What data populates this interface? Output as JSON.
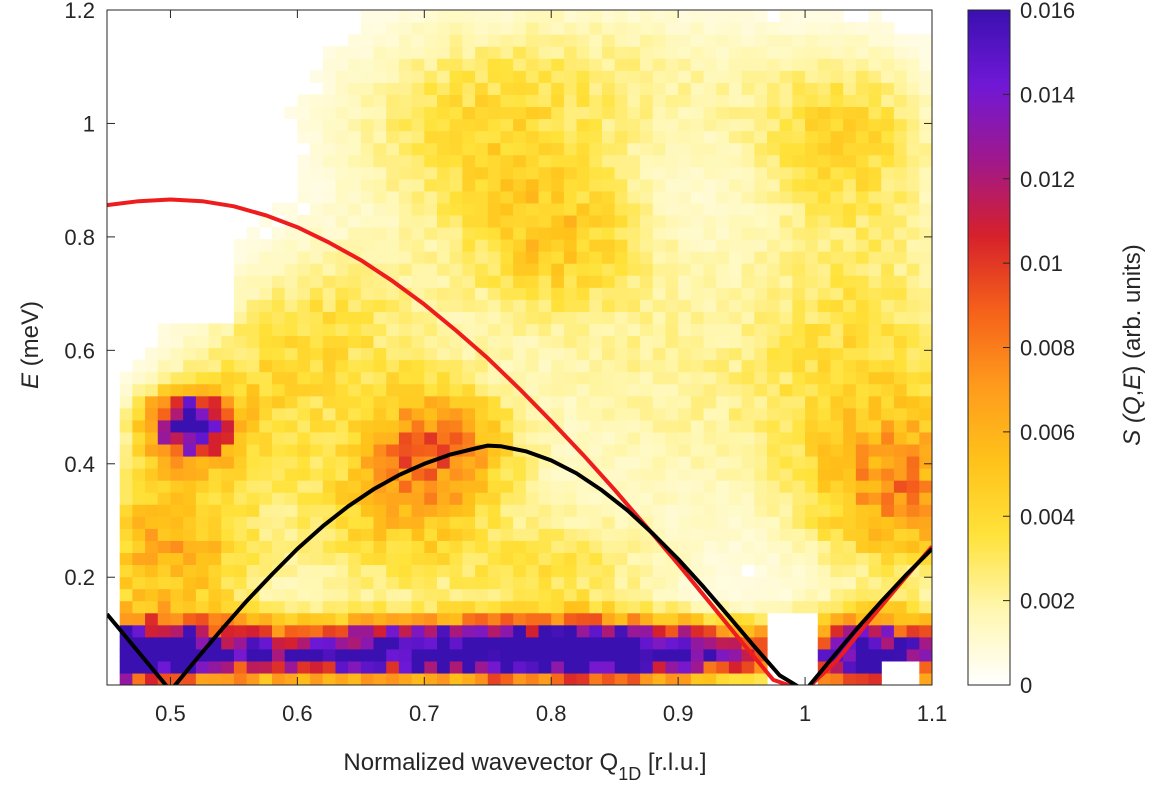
{
  "chart_data": {
    "type": "heatmap",
    "xlabel_main": "Normalized wavevector Q",
    "xlabel_sub": "1D",
    "xlabel_unit": " [r.l.u.]",
    "ylabel_var": "E",
    "ylabel_unit": " (meV)",
    "colorbar_label_pre": "S (",
    "colorbar_label_q": "Q",
    "colorbar_label_sep": ",",
    "colorbar_label_e": "E",
    "colorbar_label_post": ") (arb. units)",
    "xlim": [
      0.45,
      1.1
    ],
    "ylim": [
      0.01,
      1.2
    ],
    "xticks": [
      0.5,
      0.6,
      0.7,
      0.8,
      0.9,
      1.0,
      1.1
    ],
    "xtick_labels": [
      "0.5",
      "0.6",
      "0.7",
      "0.8",
      "0.9",
      "1",
      "1.1"
    ],
    "yticks": [
      0.2,
      0.4,
      0.6,
      0.8,
      1.0,
      1.2
    ],
    "ytick_labels": [
      "0.2",
      "0.4",
      "0.6",
      "0.8",
      "1",
      "1.2"
    ],
    "clim": [
      0,
      0.016
    ],
    "colorbar_ticks": [
      0,
      0.002,
      0.004,
      0.006,
      0.008,
      0.01,
      0.012,
      0.014,
      0.016
    ],
    "colorbar_tick_labels": [
      "0",
      "0.002",
      "0.004",
      "0.006",
      "0.008",
      "0.01",
      "0.012",
      "0.014",
      "0.016"
    ],
    "colormap": [
      "#ffffff",
      "#fff7b0",
      "#ffe23a",
      "#ffc21a",
      "#ff9a1c",
      "#f5601a",
      "#d6202c",
      "#a0188c",
      "#7018d6",
      "#3a10b0"
    ],
    "grid_extent": {
      "x": [
        0.45,
        1.1
      ],
      "y": [
        0.01,
        1.2
      ],
      "nx": 65,
      "ny": 56
    },
    "intensity_regions": [
      {
        "x": 0.455,
        "y": 0.065,
        "sx": 0.06,
        "sy": 0.04,
        "v": 0.016
      },
      {
        "x": 0.67,
        "y": 0.07,
        "sx": 0.12,
        "sy": 0.035,
        "v": 0.016
      },
      {
        "x": 0.86,
        "y": 0.07,
        "sx": 0.09,
        "sy": 0.035,
        "v": 0.016
      },
      {
        "x": 1.06,
        "y": 0.06,
        "sx": 0.04,
        "sy": 0.05,
        "v": 0.016
      },
      {
        "x": 0.515,
        "y": 0.47,
        "sx": 0.022,
        "sy": 0.04,
        "v": 0.016
      },
      {
        "x": 0.5,
        "y": 0.25,
        "sx": 0.05,
        "sy": 0.12,
        "v": 0.006
      },
      {
        "x": 0.71,
        "y": 0.43,
        "sx": 0.04,
        "sy": 0.08,
        "v": 0.007
      },
      {
        "x": 0.67,
        "y": 0.3,
        "sx": 0.05,
        "sy": 0.1,
        "v": 0.004
      },
      {
        "x": 0.8,
        "y": 0.2,
        "sx": 0.06,
        "sy": 0.08,
        "v": 0.003
      },
      {
        "x": 1.08,
        "y": 0.35,
        "sx": 0.05,
        "sy": 0.1,
        "v": 0.006
      },
      {
        "x": 1.05,
        "y": 0.6,
        "sx": 0.06,
        "sy": 0.2,
        "v": 0.003
      },
      {
        "x": 0.9,
        "y": 0.55,
        "sx": 0.1,
        "sy": 0.2,
        "v": 0.002
      },
      {
        "x": 0.63,
        "y": 0.65,
        "sx": 0.06,
        "sy": 0.1,
        "v": 0.003
      },
      {
        "x": 0.8,
        "y": 0.8,
        "sx": 0.05,
        "sy": 0.1,
        "v": 0.004
      },
      {
        "x": 0.73,
        "y": 0.98,
        "sx": 0.07,
        "sy": 0.12,
        "v": 0.003
      },
      {
        "x": 0.85,
        "y": 1.08,
        "sx": 0.1,
        "sy": 0.1,
        "v": 0.002
      },
      {
        "x": 1.03,
        "y": 0.98,
        "sx": 0.05,
        "sy": 0.1,
        "v": 0.0035
      },
      {
        "x": 0.57,
        "y": 0.5,
        "sx": 0.05,
        "sy": 0.1,
        "v": 0.003
      }
    ],
    "empty_regions": [
      {
        "x": [
          0.45,
          0.46
        ],
        "y": [
          0.01,
          1.2
        ]
      },
      {
        "x": [
          0.97,
          1.01
        ],
        "y": [
          0.01,
          0.14
        ]
      },
      {
        "x": [
          1.06,
          1.09
        ],
        "y": [
          0.01,
          0.05
        ]
      },
      {
        "x": [
          0.5,
          0.55
        ],
        "y": [
          0.65,
          1.2
        ]
      }
    ],
    "series": [
      {
        "color": "#ee1c1c",
        "x": [
          0.45,
          0.475,
          0.5,
          0.525,
          0.55,
          0.575,
          0.6,
          0.625,
          0.65,
          0.675,
          0.7,
          0.725,
          0.75,
          0.775,
          0.8,
          0.825,
          0.85,
          0.875,
          0.9,
          0.925,
          0.95,
          0.975,
          1.0,
          1.025,
          1.05,
          1.075,
          1.1
        ],
        "y": [
          0.856,
          0.863,
          0.866,
          0.863,
          0.854,
          0.838,
          0.817,
          0.79,
          0.759,
          0.722,
          0.681,
          0.635,
          0.586,
          0.532,
          0.475,
          0.416,
          0.354,
          0.289,
          0.223,
          0.155,
          0.086,
          0.019,
          0.0,
          0.053,
          0.122,
          0.189,
          0.254
        ]
      },
      {
        "color": "#000000",
        "x": [
          0.45,
          0.46,
          0.47,
          0.48,
          0.49,
          0.5,
          0.52,
          0.54,
          0.56,
          0.58,
          0.6,
          0.62,
          0.64,
          0.66,
          0.68,
          0.7,
          0.72,
          0.74,
          0.75,
          0.76,
          0.78,
          0.8,
          0.82,
          0.84,
          0.86,
          0.88,
          0.9,
          0.92,
          0.94,
          0.96,
          0.98,
          1.0,
          1.02,
          1.04,
          1.06,
          1.08,
          1.1
        ],
        "y": [
          0.135,
          0.108,
          0.081,
          0.054,
          0.027,
          0.0,
          0.054,
          0.107,
          0.158,
          0.205,
          0.25,
          0.29,
          0.325,
          0.355,
          0.38,
          0.4,
          0.416,
          0.427,
          0.432,
          0.431,
          0.422,
          0.406,
          0.383,
          0.353,
          0.318,
          0.277,
          0.232,
          0.183,
          0.131,
          0.078,
          0.027,
          0.0,
          0.054,
          0.107,
          0.157,
          0.205,
          0.25
        ]
      }
    ]
  }
}
